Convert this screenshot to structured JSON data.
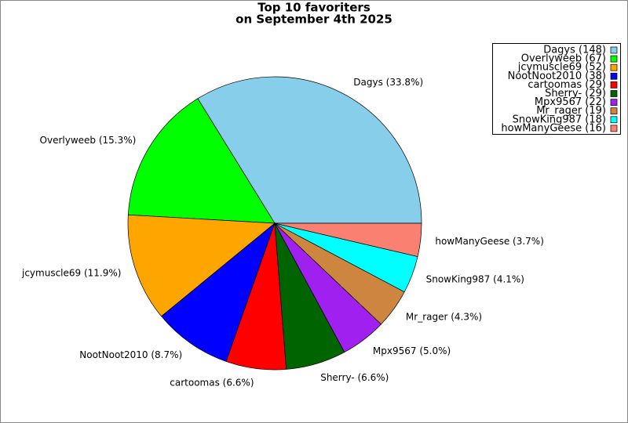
{
  "chart_data": {
    "type": "pie",
    "title": "Top 10 favoriters",
    "subtitle": "on September 4th 2025",
    "values": [
      148,
      67,
      52,
      38,
      29,
      29,
      22,
      19,
      18,
      16
    ],
    "value_labels": [
      "Dagys (148)",
      "Overlyweeb (67)",
      "jcymuscle69 (52)",
      "NootNoot2010 (38)",
      "cartoomas (29)",
      "Sherry- (29)",
      "Mpx9567 (22)",
      "Mr_rager (19)",
      "SnowKing987 (18)",
      "howManyGeese (16)"
    ],
    "slice_labels": [
      "Dagys (33.8%)",
      "Overlyweeb (15.3%)",
      "jcymuscle69 (11.9%)",
      "NootNoot2010 (8.7%)",
      "cartoomas (6.6%)",
      "Sherry- (6.6%)",
      "Mpx9567 (5.0%)",
      "Mr_rager (4.3%)",
      "SnowKing987 (4.1%)",
      "howManyGeese (3.7%)"
    ],
    "colors": [
      "#87ceeb",
      "#00ff00",
      "#ffa500",
      "#0000ff",
      "#ff0000",
      "#006400",
      "#a020f0",
      "#cd853f",
      "#00ffff",
      "#fa8072"
    ],
    "legend": "upper right"
  }
}
